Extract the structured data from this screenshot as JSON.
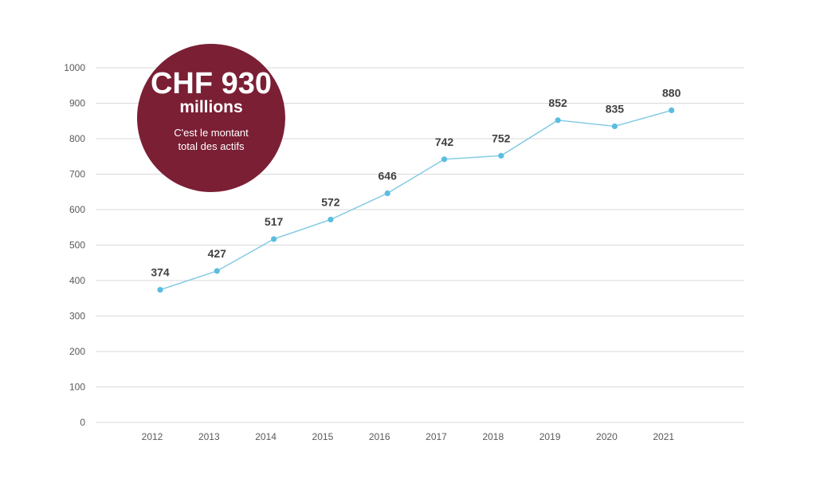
{
  "chart_data": {
    "type": "line",
    "categories": [
      "2012",
      "2013",
      "2014",
      "2015",
      "2016",
      "2017",
      "2018",
      "2019",
      "2020",
      "2021"
    ],
    "values": [
      374,
      427,
      517,
      572,
      646,
      742,
      752,
      852,
      835,
      880
    ],
    "data_labels": [
      "374",
      "427",
      "517",
      "572",
      "646",
      "742",
      "752",
      "852",
      "835",
      "880"
    ],
    "ylim": [
      0,
      1000
    ],
    "yticks": [
      0,
      100,
      200,
      300,
      400,
      500,
      600,
      700,
      800,
      900,
      1000
    ],
    "grid": true,
    "legend": "none",
    "title": "",
    "xlabel": "",
    "ylabel": ""
  },
  "callout": {
    "headline": "CHF 930",
    "unit": "millions",
    "line1": "C'est le montant",
    "line2": "total des actifs"
  },
  "colors": {
    "line": "#7ec8e3",
    "marker": "#5bbde0",
    "callout": "#7b1f35",
    "grid": "#d9d9d9"
  }
}
